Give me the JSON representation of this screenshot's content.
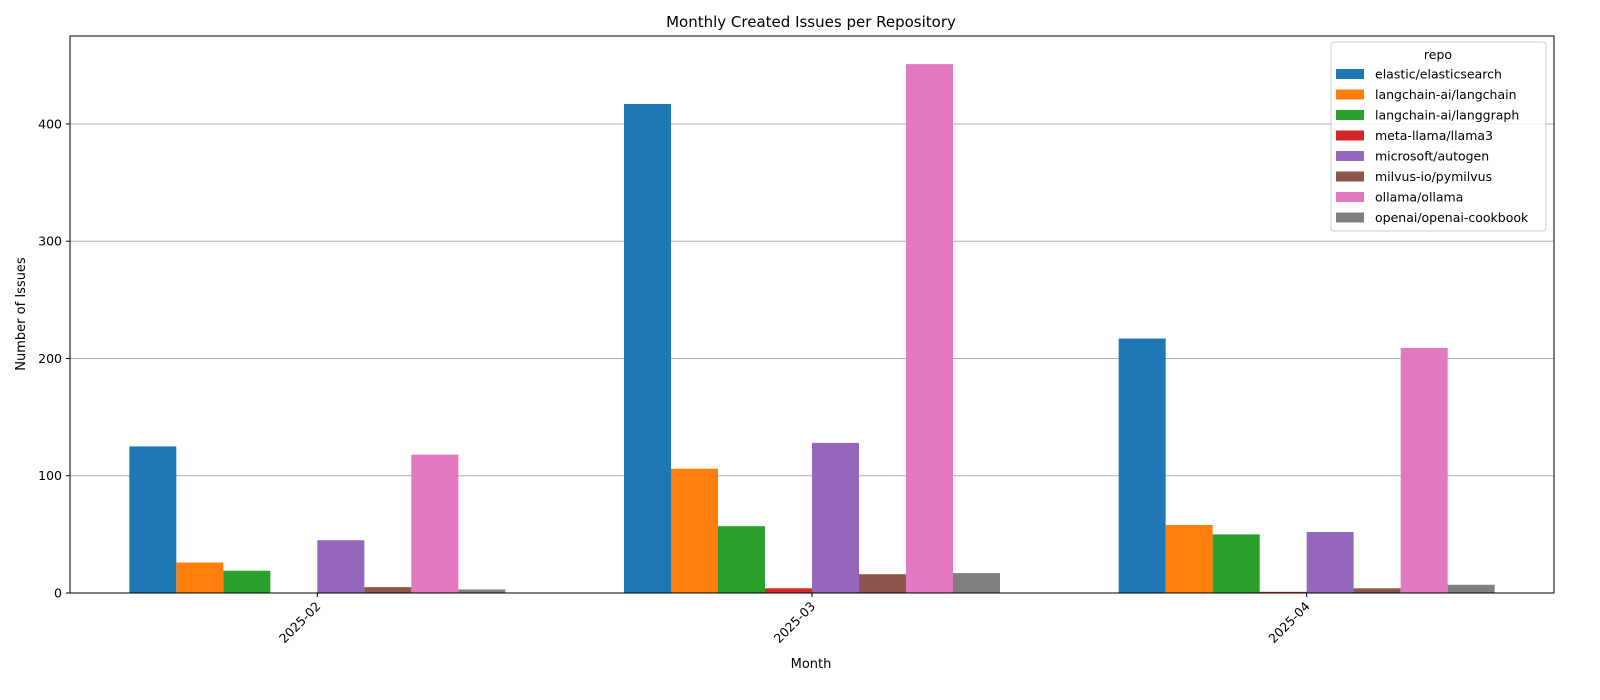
{
  "chart_data": {
    "type": "bar",
    "title": "Monthly Created Issues per Repository",
    "xlabel": "Month",
    "ylabel": "Number of Issues",
    "categories": [
      "2025-02",
      "2025-03",
      "2025-04"
    ],
    "ylim": [
      0,
      475
    ],
    "yticks": [
      0,
      100,
      200,
      300,
      400
    ],
    "grid": "horizontal",
    "legend": {
      "title": "repo",
      "placement": "top-right"
    },
    "series": [
      {
        "name": "elastic/elasticsearch",
        "color": "#1f77b4",
        "values": [
          125,
          417,
          217
        ]
      },
      {
        "name": "langchain-ai/langchain",
        "color": "#ff7f0e",
        "values": [
          26,
          106,
          58
        ]
      },
      {
        "name": "langchain-ai/langgraph",
        "color": "#2ca02c",
        "values": [
          19,
          57,
          50
        ]
      },
      {
        "name": "meta-llama/llama3",
        "color": "#d62728",
        "values": [
          0,
          4,
          1
        ]
      },
      {
        "name": "microsoft/autogen",
        "color": "#9467bd",
        "values": [
          45,
          128,
          52
        ]
      },
      {
        "name": "milvus-io/pymilvus",
        "color": "#8c564b",
        "values": [
          5,
          16,
          4
        ]
      },
      {
        "name": "ollama/ollama",
        "color": "#e377c2",
        "values": [
          118,
          451,
          209
        ]
      },
      {
        "name": "openai/openai-cookbook",
        "color": "#7f7f7f",
        "values": [
          3,
          17,
          7
        ]
      }
    ]
  }
}
